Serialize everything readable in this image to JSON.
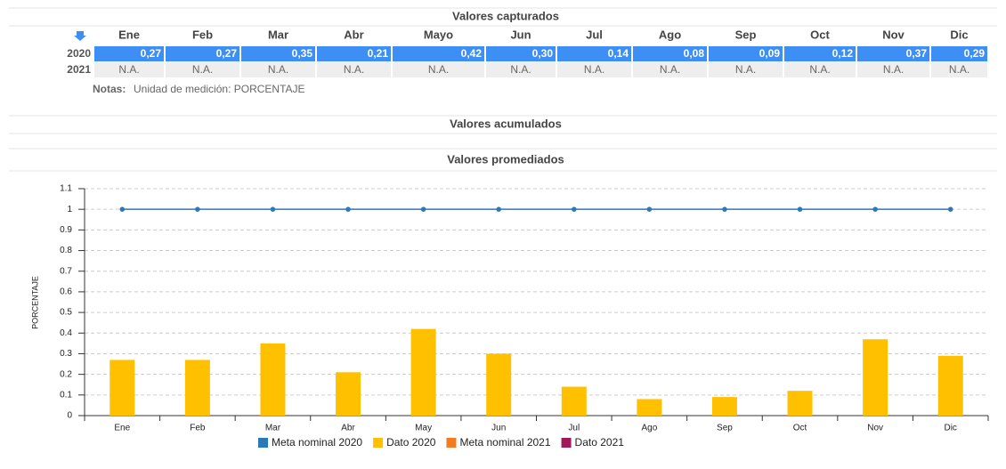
{
  "table": {
    "title": "Valores capturados",
    "header": [
      "Ene",
      "Feb",
      "Mar",
      "Abr",
      "Mayo",
      "Jun",
      "Jul",
      "Ago",
      "Sep",
      "Oct",
      "Nov",
      "Dic"
    ],
    "rows": [
      [
        "2020",
        "0,27",
        "0,27",
        "0,35",
        "0,21",
        "0,42",
        "0,30",
        "0,14",
        "0,08",
        "0,09",
        "0,12",
        "0,37",
        "0,29"
      ],
      [
        "2021",
        "N.A.",
        "N.A.",
        "N.A.",
        "N.A.",
        "N.A.",
        "N.A.",
        "N.A.",
        "N.A.",
        "N.A.",
        "N.A.",
        "N.A.",
        "N.A."
      ]
    ],
    "notes": {
      "label": "Notas:",
      "text": "Unidad de medición: PORCENTAJE"
    }
  },
  "sections": [
    "Valores acumulados",
    "Valores promediados"
  ],
  "chart_data": {
    "type": "bar",
    "categories": [
      "Ene",
      "Feb",
      "Mar",
      "Abr",
      "May",
      "Jun",
      "Jul",
      "Ago",
      "Sep",
      "Oct",
      "Nov",
      "Dic"
    ],
    "series": [
      {
        "name": "Meta nominal 2020",
        "color": "#2a7ab9",
        "type": "line",
        "values": [
          1,
          1,
          1,
          1,
          1,
          1,
          1,
          1,
          1,
          1,
          1,
          1
        ]
      },
      {
        "name": "Dato 2020",
        "color": "#ffc000",
        "type": "bar",
        "values": [
          0.27,
          0.27,
          0.35,
          0.21,
          0.42,
          0.3,
          0.14,
          0.08,
          0.09,
          0.12,
          0.37,
          0.29
        ]
      },
      {
        "name": "Meta nominal 2021",
        "color": "#f47b20",
        "type": "line",
        "values": [
          null,
          null,
          null,
          null,
          null,
          null,
          null,
          null,
          null,
          null,
          null,
          null
        ]
      },
      {
        "name": "Dato 2021",
        "color": "#a0185a",
        "type": "bar",
        "values": [
          null,
          null,
          null,
          null,
          null,
          null,
          null,
          null,
          null,
          null,
          null,
          null
        ]
      }
    ],
    "y_label": "PORCENTAJE",
    "ylim": [
      0,
      1.1
    ],
    "yticks": [
      0,
      0.1,
      0.2,
      0.3,
      0.4,
      0.5,
      0.6,
      0.7,
      0.8,
      0.9,
      1,
      1.1
    ],
    "grid": true
  }
}
